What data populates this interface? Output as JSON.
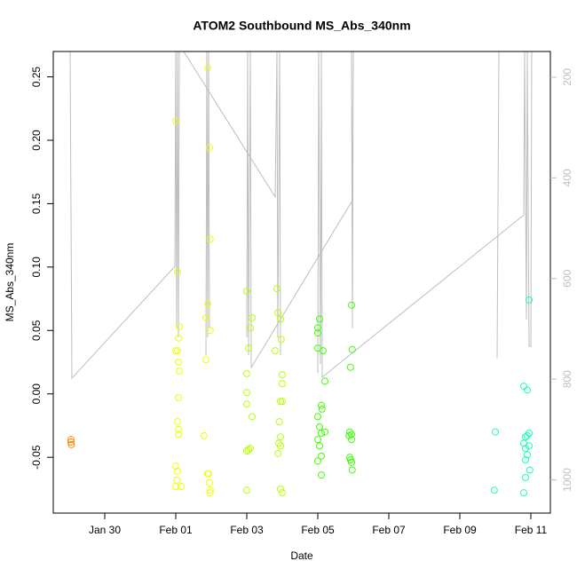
{
  "chart_data": {
    "type": "scatter",
    "title": "ATOM2 Southbound MS_Abs_340nm",
    "xlabel": "Date",
    "ylabel": "MS_Abs_340nm",
    "xlim": [
      28.55,
      42.55
    ],
    "xticks": [
      {
        "value": 30,
        "label": "Jan 30"
      },
      {
        "value": 32,
        "label": "Feb 01"
      },
      {
        "value": 34,
        "label": "Feb 03"
      },
      {
        "value": 36,
        "label": "Feb 05"
      },
      {
        "value": 38,
        "label": "Feb 07"
      },
      {
        "value": 40,
        "label": "Feb 09"
      },
      {
        "value": 42,
        "label": "Feb 11"
      }
    ],
    "ylim": [
      -0.094,
      0.27
    ],
    "yticks": [
      {
        "value": -0.05,
        "label": "-0.05"
      },
      {
        "value": 0,
        "label": "0.00"
      },
      {
        "value": 0.05,
        "label": "0.05"
      },
      {
        "value": 0.1,
        "label": "0.10"
      },
      {
        "value": 0.15,
        "label": "0.15"
      },
      {
        "value": 0.2,
        "label": "0.20"
      },
      {
        "value": 0.25,
        "label": "0.25"
      }
    ],
    "y2lim": [
      1066,
      149
    ],
    "y2ticks": [
      200,
      400,
      600,
      800,
      1000
    ],
    "y2_color": "#bebebe",
    "series": [
      {
        "color": "#ff8c00",
        "x": [
          29.05,
          29.05,
          29.06
        ],
        "values": [
          -0.036,
          -0.038,
          -0.04
        ]
      },
      {
        "color": "#eeff00",
        "x": [
          32.0,
          32.05,
          32.1,
          32.08,
          32.0,
          32.05,
          32.08,
          32.1,
          32.08,
          32.05,
          32.08,
          32.08,
          32.0,
          32.05,
          32.03,
          32.0,
          32.15,
          32.9,
          32.95,
          32.97,
          32.9,
          32.85,
          32.97,
          32.85,
          32.8,
          32.9,
          32.92,
          32.95,
          32.97,
          32.97
        ],
        "values": [
          0.215,
          0.096,
          0.053,
          0.044,
          0.034,
          0.034,
          0.025,
          0.018,
          -0.003,
          -0.022,
          -0.028,
          -0.032,
          -0.057,
          -0.061,
          -0.068,
          -0.073,
          -0.073,
          0.257,
          0.194,
          0.122,
          0.071,
          0.06,
          0.05,
          0.027,
          -0.033,
          -0.063,
          -0.063,
          -0.07,
          -0.076,
          -0.078
        ]
      },
      {
        "color": "#b8ff00",
        "x": [
          34.0,
          34.15,
          34.1,
          34.05,
          34.0,
          34.0,
          34.0,
          34.15,
          34.0,
          34.05,
          34.1,
          34.0,
          34.85,
          34.88,
          34.95,
          34.97,
          34.8,
          35.0,
          35.0,
          34.95,
          35.0,
          34.92,
          34.95,
          34.95,
          34.9,
          34.88,
          34.95,
          35.0
        ],
        "values": [
          0.081,
          0.06,
          0.052,
          0.036,
          0.016,
          0.001,
          -0.008,
          -0.018,
          -0.045,
          -0.044,
          -0.043,
          -0.076,
          0.083,
          0.064,
          0.059,
          0.043,
          0.034,
          0.015,
          0.008,
          -0.006,
          -0.006,
          -0.022,
          -0.034,
          -0.041,
          -0.039,
          -0.047,
          -0.075,
          -0.078
        ]
      },
      {
        "color": "#3cff00",
        "x": [
          36.05,
          36.0,
          36.0,
          36.0,
          36.15,
          36.2,
          36.1,
          36.12,
          36.0,
          36.05,
          36.1,
          36.2,
          36.0,
          36.05,
          36.1,
          36.0,
          36.1,
          36.95,
          36.97,
          36.92,
          36.9,
          36.95,
          36.88,
          36.95,
          36.9,
          36.95,
          36.92,
          36.97
        ],
        "values": [
          0.059,
          0.052,
          0.048,
          0.036,
          0.034,
          0.01,
          -0.009,
          -0.012,
          -0.018,
          -0.026,
          -0.031,
          -0.03,
          -0.036,
          -0.041,
          -0.049,
          -0.053,
          -0.064,
          0.07,
          0.035,
          0.021,
          -0.03,
          -0.032,
          -0.033,
          -0.036,
          -0.05,
          -0.054,
          -0.052,
          -0.06
        ]
      },
      {
        "color": "#1affb4",
        "x": [
          41.0,
          40.97,
          41.95,
          41.8,
          41.9,
          41.95,
          41.85,
          41.9,
          41.8,
          41.95,
          41.85,
          41.9,
          41.85,
          41.97,
          41.85,
          41.8
        ],
        "values": [
          -0.03,
          -0.076,
          0.074,
          0.006,
          0.003,
          -0.031,
          -0.034,
          -0.033,
          -0.039,
          -0.041,
          -0.043,
          -0.048,
          -0.052,
          -0.06,
          -0.066,
          -0.078
        ]
      },
      {
        "type": "line",
        "axis": "y2",
        "color": "#bebebe",
        "x": [
          29.025,
          29.075,
          31.975,
          32.0,
          32.025,
          32.05,
          32.075,
          32.1,
          32.225,
          34.8,
          34.85,
          34.875,
          34.925,
          34.95,
          null,
          32.85,
          32.875,
          32.9,
          32.925,
          32.95,
          null,
          34.0,
          34.025,
          34.05,
          34.1,
          34.125,
          36.975,
          36.95,
          36.975,
          37.0,
          null,
          36.0,
          36.025,
          36.075,
          36.1,
          36.125,
          41.8,
          41.825,
          41.875,
          41.9,
          41.95,
          42.0,
          42.025,
          null,
          41.05,
          41.1
        ],
        "values": [
          149,
          798,
          576,
          149,
          699,
          149,
          717,
          149,
          149,
          438,
          149,
          717,
          149,
          752,
          null,
          752,
          149,
          717,
          149,
          699,
          null,
          717,
          149,
          752,
          149,
          777,
          445,
          149,
          699,
          149,
          null,
          788,
          149,
          770,
          149,
          796,
          474,
          149,
          682,
          149,
          735,
          735,
          149,
          null,
          759,
          149
        ]
      }
    ]
  }
}
